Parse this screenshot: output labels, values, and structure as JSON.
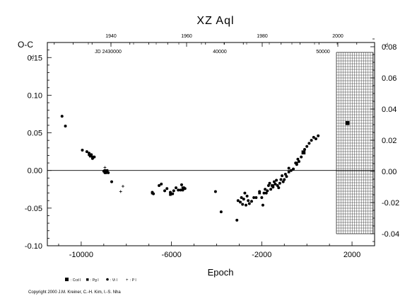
{
  "chart_data": {
    "type": "scatter",
    "title": "XZ  Aql",
    "ylabel_left": "O-C",
    "ylabel_left_unit": "d",
    "ylabel_right_unit": "d",
    "xlabel": "Epoch",
    "xlim": [
      -11500,
      3000
    ],
    "ylim": [
      -0.1,
      0.17
    ],
    "right_ylim": [
      -0.045,
      0.085
    ],
    "bottom_ticks": [
      "-10000",
      "-6000",
      "-2000",
      "2000"
    ],
    "left_ticks": [
      "0.15",
      "0.10",
      "0.05",
      "0.00",
      "-0.05",
      "-0.10"
    ],
    "right_ticks": [
      "0.08",
      "0.06",
      "0.04",
      "0.02",
      "0.00",
      "-0.02",
      "-0.04"
    ],
    "top_year_ticks": [
      "1940",
      "1960",
      "1980",
      "2000"
    ],
    "top_jd_labels": [
      "JD 2430000",
      "40000",
      "50000"
    ],
    "legend": [
      {
        "symbol": "square",
        "label": ": Ccd I"
      },
      {
        "symbol": "square-small",
        "label": ": Pg I"
      },
      {
        "symbol": "circle",
        "label": ": Vi I"
      },
      {
        "symbol": "plus",
        "label": ": P I"
      }
    ],
    "copyright": "Copyright 2000 J.M. Kreiner, C.-H. Kim, I.-S. Nha",
    "series": [
      {
        "name": "Vi I",
        "points": [
          [
            -10850,
            0.072
          ],
          [
            -10700,
            0.059
          ],
          [
            -9950,
            0.027
          ],
          [
            -9750,
            0.025
          ],
          [
            -9650,
            0.023
          ],
          [
            -9600,
            0.019
          ],
          [
            -9550,
            0.021
          ],
          [
            -9500,
            0.016
          ],
          [
            -9420,
            0.018
          ],
          [
            -9000,
            -0.001
          ],
          [
            -8950,
            -0.003
          ],
          [
            -8900,
            -0.003
          ],
          [
            -8850,
            0.0
          ],
          [
            -8800,
            -0.003
          ],
          [
            -8650,
            -0.015
          ],
          [
            -6850,
            -0.029
          ],
          [
            -6800,
            -0.031
          ],
          [
            -6550,
            -0.02
          ],
          [
            -6450,
            -0.018
          ],
          [
            -6300,
            -0.027
          ],
          [
            -6200,
            -0.024
          ],
          [
            -6050,
            -0.029
          ],
          [
            -5950,
            -0.031
          ],
          [
            -5900,
            -0.027
          ],
          [
            -5800,
            -0.023
          ],
          [
            -5700,
            -0.026
          ],
          [
            -5600,
            -0.026
          ],
          [
            -5550,
            -0.019
          ],
          [
            -5500,
            -0.026
          ],
          [
            -5450,
            -0.023
          ],
          [
            -5400,
            -0.024
          ],
          [
            -4050,
            -0.028
          ],
          [
            -3800,
            -0.055
          ],
          [
            -3100,
            -0.066
          ],
          [
            -3050,
            -0.04
          ],
          [
            -2950,
            -0.042
          ],
          [
            -2900,
            -0.036
          ],
          [
            -2850,
            -0.045
          ],
          [
            -2800,
            -0.038
          ],
          [
            -2750,
            -0.03
          ],
          [
            -2700,
            -0.046
          ],
          [
            -2650,
            -0.034
          ],
          [
            -2600,
            -0.04
          ],
          [
            -2550,
            -0.044
          ],
          [
            -2450,
            -0.041
          ],
          [
            -2350,
            -0.036
          ],
          [
            -2250,
            -0.036
          ],
          [
            -2100,
            -0.028
          ],
          [
            -2000,
            -0.036
          ],
          [
            -1950,
            -0.046
          ],
          [
            -1900,
            -0.03
          ],
          [
            -1850,
            -0.025
          ],
          [
            -1800,
            -0.03
          ],
          [
            -1750,
            -0.027
          ],
          [
            -1700,
            -0.02
          ],
          [
            -1650,
            -0.017
          ],
          [
            -1600,
            -0.025
          ],
          [
            -1550,
            -0.02
          ],
          [
            -1500,
            -0.022
          ],
          [
            -1450,
            -0.015
          ],
          [
            -1400,
            -0.018
          ],
          [
            -1350,
            -0.013
          ],
          [
            -1300,
            -0.02
          ],
          [
            -1250,
            -0.023
          ],
          [
            -1200,
            -0.017
          ],
          [
            -1150,
            -0.012
          ],
          [
            -1100,
            -0.007
          ],
          [
            -1050,
            -0.015
          ],
          [
            -1000,
            -0.012
          ],
          [
            -950,
            -0.005
          ],
          [
            -900,
            -0.008
          ],
          [
            -800,
            0.003
          ],
          [
            -700,
            0.0
          ],
          [
            -600,
            0.002
          ],
          [
            -500,
            0.01
          ],
          [
            -450,
            0.008
          ],
          [
            -400,
            0.015
          ],
          [
            -350,
            0.012
          ],
          [
            -250,
            0.018
          ],
          [
            -100,
            0.028
          ],
          [
            0,
            0.032
          ],
          [
            100,
            0.036
          ],
          [
            200,
            0.04
          ],
          [
            300,
            0.044
          ],
          [
            400,
            0.042
          ],
          [
            500,
            0.046
          ]
        ]
      },
      {
        "name": "Pg I",
        "points": [
          [
            -9650,
            0.021
          ],
          [
            -9500,
            0.018
          ],
          [
            -8950,
            0.0
          ],
          [
            -6850,
            -0.03
          ],
          [
            -6050,
            -0.032
          ],
          [
            -5500,
            -0.023
          ],
          [
            -2100,
            -0.03
          ],
          [
            -1500,
            -0.02
          ],
          [
            -800,
            -0.002
          ],
          [
            -450,
            0.01
          ]
        ]
      },
      {
        "name": "Ccd I",
        "points": [
          [
            -150,
            0.024
          ],
          [
            1800,
            0.063
          ]
        ]
      },
      {
        "name": "P I",
        "points": [
          [
            -9450,
            0.017
          ],
          [
            -8950,
            0.004
          ],
          [
            -8250,
            -0.028
          ],
          [
            -8150,
            -0.021
          ]
        ]
      }
    ]
  }
}
